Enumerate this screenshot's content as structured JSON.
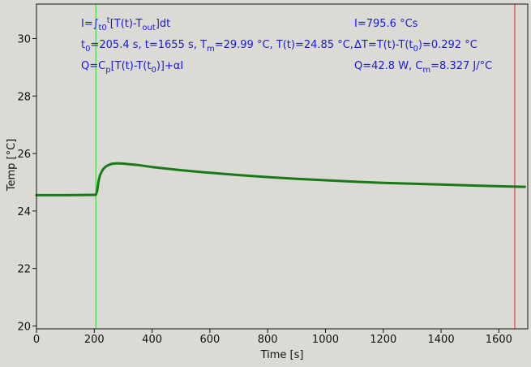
{
  "chart_data": {
    "type": "line",
    "xlabel": "Time [s]",
    "ylabel": "Temp [°C]",
    "xlim": [
      0,
      1700
    ],
    "ylim": [
      19.9,
      31.2
    ],
    "x_ticks": [
      0,
      200,
      400,
      600,
      800,
      1000,
      1200,
      1400,
      1600
    ],
    "y_ticks": [
      20,
      22,
      24,
      26,
      28,
      30
    ],
    "grid": false,
    "series": [
      {
        "color": "#1a7a1a",
        "x": [
          0,
          100,
          200,
          205,
          210,
          215,
          220,
          230,
          240,
          250,
          260,
          280,
          300,
          350,
          400,
          500,
          600,
          700,
          800,
          900,
          1000,
          1100,
          1200,
          1300,
          1400,
          1500,
          1600,
          1690
        ],
        "y": [
          24.55,
          24.55,
          24.56,
          24.56,
          24.7,
          25.05,
          25.25,
          25.45,
          25.55,
          25.6,
          25.64,
          25.66,
          25.65,
          25.6,
          25.53,
          25.42,
          25.33,
          25.25,
          25.18,
          25.12,
          25.07,
          25.02,
          24.98,
          24.95,
          24.92,
          24.89,
          24.86,
          24.84
        ]
      }
    ],
    "vlines": [
      {
        "x": 205.4,
        "color": "#22dd22"
      },
      {
        "x": 1655,
        "color": "#dd2222"
      }
    ],
    "annotations": {
      "left": {
        "line1": {
          "a": "I=∫",
          "b": "t0",
          "c": "t",
          "d": "[T(t)-T",
          "e": "out",
          "f": "]dt"
        },
        "line2": {
          "a": "t",
          "b": "0",
          "c": "=205.4 s,   t=1655 s,   T",
          "d": "m",
          "e": "=29.99 °C,  T(t)=24.85 °C,"
        },
        "line3": {
          "a": "Q=C",
          "b": "p",
          "c": "[T(t)-T(t",
          "d": "0",
          "e": ")]+αI"
        }
      },
      "right": {
        "line1": "I=795.6 °Cs",
        "line2": {
          "a": "ΔT=T(t)-T(t",
          "b": "0",
          "c": ")=0.292 °C"
        },
        "line3": {
          "a": "Q=42.8 W,   C",
          "b": "m",
          "c": "=8.327 J/°C"
        }
      }
    },
    "colors": {
      "background": "#dcdad5",
      "annotation": "#1a1ad6",
      "axes": "#111111"
    }
  }
}
